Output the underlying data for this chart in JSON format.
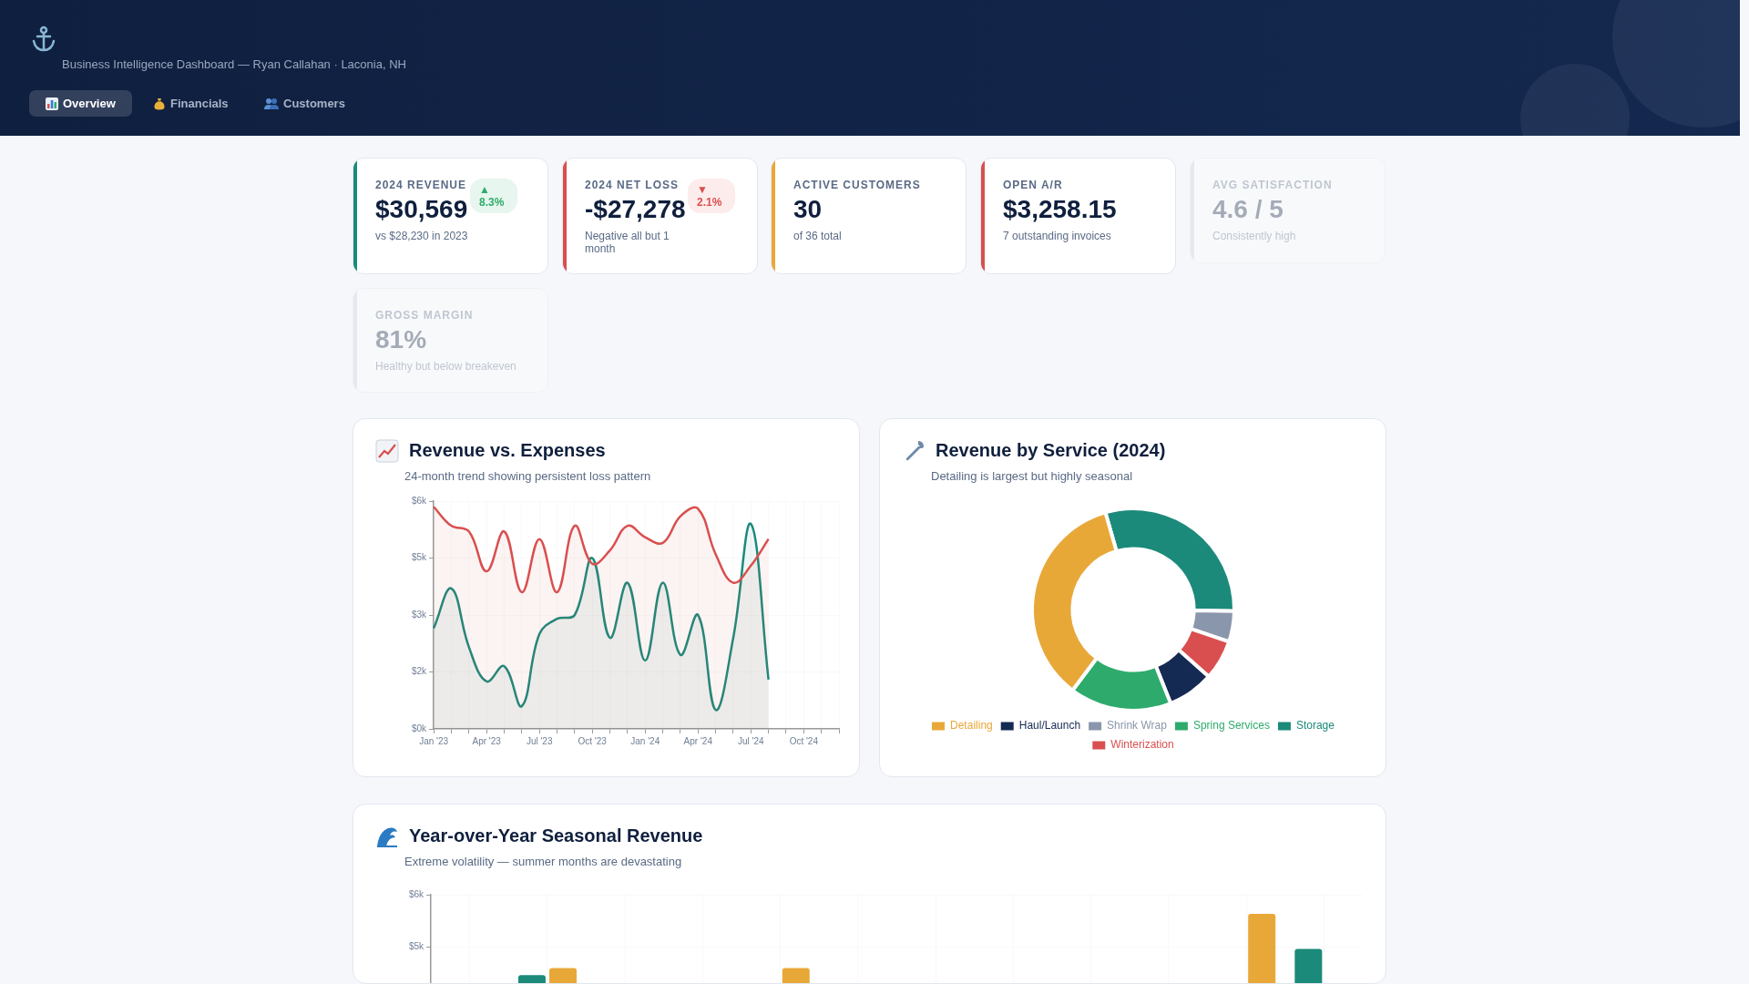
{
  "chart_data": [
    {
      "type": "other",
      "subtitle": "Business Intelligence Dashboard — Ryan Callahan · Laconia, NH",
      "annotations": [
        "Overview",
        "Financials",
        "Customers"
      ]
    },
    {
      "type": "other",
      "title": "2024 REVENUE",
      "annotations": [
        "$30,569",
        "vs $28,230 in 2023",
        "▲ 8.3%"
      ]
    },
    {
      "type": "other",
      "title": "2024 NET LOSS",
      "annotations": [
        "-$27,278",
        "Negative all but 1 month",
        "▼ 2.1%"
      ]
    },
    {
      "type": "other",
      "title": "ACTIVE CUSTOMERS",
      "annotations": [
        "30",
        "of 36 total"
      ]
    },
    {
      "type": "other",
      "title": "OPEN A/R",
      "annotations": [
        "$3,258.15",
        "7 outstanding invoices"
      ]
    },
    {
      "type": "other",
      "title": "AVG SATISFACTION",
      "annotations": [
        "4.6 / 5",
        "Consistently high"
      ]
    },
    {
      "type": "other",
      "title": "GROSS MARGIN",
      "annotations": [
        "81%",
        "Healthy but below breakeven"
      ]
    },
    {
      "type": "area",
      "title": "Revenue vs. Expenses",
      "subtitle": "24-month trend showing persistent loss pattern",
      "categories": [
        "Jan '23",
        null,
        null,
        "Apr '23",
        null,
        null,
        "Jul '23",
        null,
        null,
        "Oct '23",
        null,
        null,
        "Jan '24",
        null,
        null,
        "Apr '24",
        null,
        null,
        "Jul '24",
        null,
        null,
        "Oct '24",
        null,
        null
      ],
      "ylim": [
        0,
        6000
      ],
      "yticks": [
        {
          "value": 0,
          "label": "$0k"
        },
        {
          "value": 1500,
          "label": "$2k"
        },
        {
          "value": 3000,
          "label": "$3k"
        },
        {
          "value": 4500,
          "label": "$5k"
        },
        {
          "value": 6000,
          "label": "$6k"
        }
      ],
      "grid": true,
      "series": [
        {
          "color": "#d94f4f",
          "values": [
            5850,
            5350,
            5200,
            4150,
            5200,
            3600,
            5000,
            3600,
            5350,
            4350,
            4700,
            5350,
            5050,
            4900,
            5600,
            5800,
            4600,
            3850,
            4300,
            5000,
            null,
            null,
            null,
            null
          ]
        },
        {
          "color": "#1b8a7a",
          "values": [
            2650,
            3700,
            2150,
            1250,
            1650,
            600,
            2500,
            2900,
            3000,
            4500,
            2400,
            3850,
            1800,
            3850,
            1950,
            3000,
            500,
            2400,
            5400,
            1300,
            null,
            null,
            null,
            null
          ]
        }
      ]
    },
    {
      "type": "donut",
      "title": "Revenue by Service (2024)",
      "subtitle": "Detailing is largest but highly seasonal",
      "categories": [
        "Storage",
        "Shrink Wrap",
        "Winterization",
        "Haul/Launch",
        "Spring Services",
        "Detailing"
      ],
      "values": [
        29.7,
        4.9,
        6.4,
        7.4,
        16.3,
        35.3
      ],
      "colors": [
        "#1b8a7a",
        "#8a96ab",
        "#d94f4f",
        "#152a52",
        "#2eab6c",
        "#e8a838"
      ],
      "legend": "bottom"
    },
    {
      "type": "bar",
      "title": "Year-over-Year Seasonal Revenue",
      "subtitle": "Extreme volatility — summer months are devastating",
      "categories": [
        null,
        null,
        null,
        null,
        null,
        null,
        null,
        null,
        null,
        null,
        null,
        null
      ],
      "ylim": [
        0,
        6000
      ],
      "yticks": [
        {
          "value": 4500,
          "label": "$5k"
        },
        {
          "value": 6000,
          "label": "$6k"
        }
      ],
      "grid": true,
      "series": [
        {
          "color": "#1b8a7a",
          "values": [
            null,
            3700,
            null,
            null,
            null,
            null,
            null,
            null,
            null,
            null,
            null,
            4450
          ]
        },
        {
          "color": "#e8a838",
          "values": [
            null,
            3900,
            null,
            null,
            3900,
            null,
            null,
            null,
            null,
            null,
            5450,
            null
          ]
        }
      ]
    }
  ]
}
